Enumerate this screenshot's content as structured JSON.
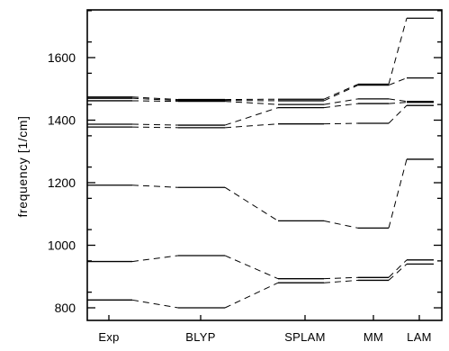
{
  "chart_data": {
    "type": "line",
    "title": "",
    "xlabel": "",
    "ylabel": "frequency [1/cm]",
    "ylim": [
      770,
      1750
    ],
    "yticks": [
      800,
      1000,
      1200,
      1400,
      1600
    ],
    "ytick_labels": [
      "800",
      "1000",
      "1200",
      "1400",
      "1600"
    ],
    "grid": false,
    "legend": "none",
    "categories": [
      "Exp",
      "BLYP",
      "SPLAM",
      "MM",
      "LAM"
    ],
    "series": [
      {
        "values": [
          825,
          800,
          880,
          888,
          940
        ]
      },
      {
        "values": [
          948,
          967,
          893,
          897,
          953
        ]
      },
      {
        "values": [
          1192,
          1185,
          1078,
          1055,
          1275
        ]
      },
      {
        "values": [
          1378,
          1376,
          1388,
          1390,
          1447
        ]
      },
      {
        "values": [
          1387,
          1384,
          1440,
          1453,
          1457
        ]
      },
      {
        "values": [
          1462,
          1460,
          1450,
          1468,
          1460
        ]
      },
      {
        "values": [
          1470,
          1463,
          1462,
          1512,
          1535
        ]
      },
      {
        "values": [
          1474,
          1466,
          1467,
          1515,
          1726
        ]
      }
    ]
  }
}
